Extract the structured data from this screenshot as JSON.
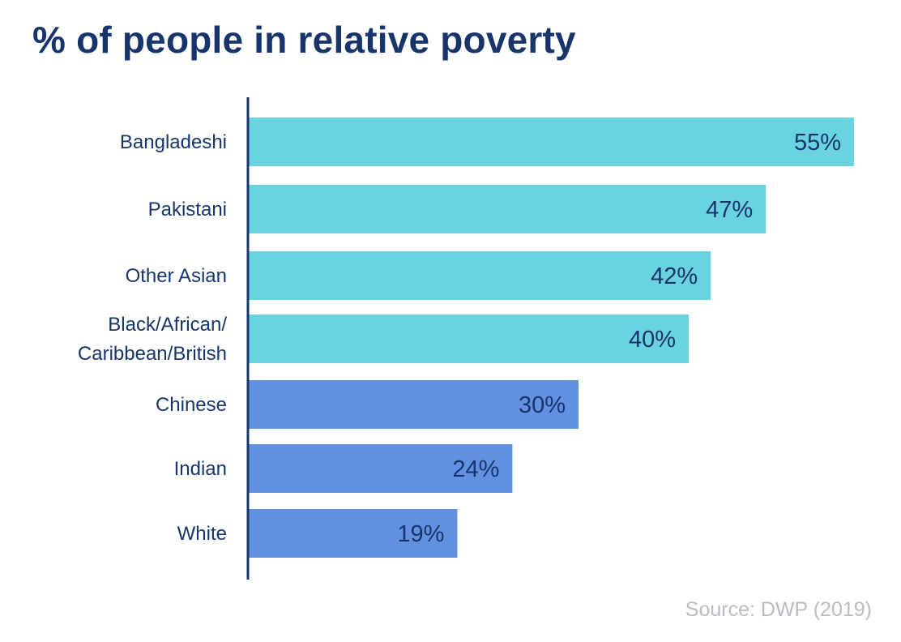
{
  "chart_data": {
    "type": "bar",
    "orientation": "horizontal",
    "title": "% of people in relative poverty",
    "categories": [
      "Bangladeshi",
      "Pakistani",
      "Other Asian",
      "Black/African/\nCaribbean/British",
      "Chinese",
      "Indian",
      "White"
    ],
    "values": [
      55,
      47,
      42,
      40,
      30,
      24,
      19
    ],
    "value_labels": [
      "55%",
      "47%",
      "42%",
      "40%",
      "30%",
      "24%",
      "19%"
    ],
    "bar_colors": [
      "#6ad3e0",
      "#6ad3e0",
      "#6ad3e0",
      "#6ad3e0",
      "#6291e2",
      "#6291e2",
      "#6291e2"
    ],
    "xlim": [
      0,
      55
    ],
    "grid": false,
    "source": "Source: DWP (2019)"
  },
  "colors": {
    "title": "#17356b",
    "axis": "#17356b",
    "source": "#b9bcc2"
  }
}
